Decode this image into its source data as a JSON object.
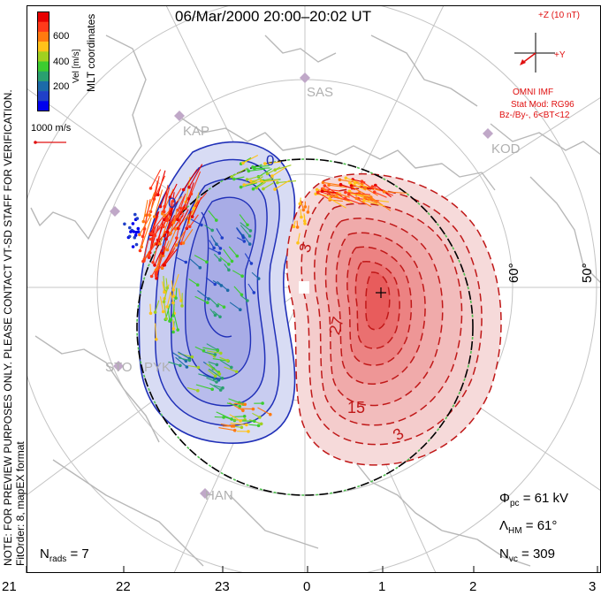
{
  "title": "06/Mar/2000 20:00–20:02 UT",
  "colorbar": {
    "label": "Vel [m/s]",
    "ticks": [
      "600",
      "400",
      "200"
    ],
    "colors": [
      "#e60000",
      "#ff3a1a",
      "#ff7a10",
      "#ffc21a",
      "#a0d020",
      "#3ccc30",
      "#2aa070",
      "#1c6aa8",
      "#2040c8",
      "#0000ee"
    ]
  },
  "coord_label": "MLT coordinates",
  "scale_vector": "1000 m/s",
  "disclaimer": "NOTE: FOR PREVIEW PURPOSES ONLY. PLEASE CONTACT VT-SD STAFF FOR VERIFICATION.",
  "fit_info": "FitOrder: 8,  mapEX format",
  "imf": {
    "bz_label": "+Z (10 nT)",
    "by_label": "+Y",
    "source": "OMNI IMF",
    "model": "Stat Mod: RG96",
    "condition": "Bz-/By-, 6<BT<12"
  },
  "radar_sites": [
    "SAS",
    "KAP",
    "KOD",
    "STO",
    "PYK",
    "HAN"
  ],
  "latitude_labels": [
    "60°",
    "50°"
  ],
  "contour_labels": {
    "negative": [
      "0",
      "0"
    ],
    "positive": [
      "3",
      "27",
      "15",
      "3"
    ]
  },
  "stats": {
    "phi_pc_symbol": "Φ",
    "phi_pc_sub": "pc",
    "phi_pc_value": "= 61  kV",
    "lambda_hm_symbol": "Λ",
    "lambda_hm_sub": "HM",
    "lambda_hm_value": "= 61°",
    "n_vc_symbol": "N",
    "n_vc_sub": "vc",
    "n_vc_value": "= 309",
    "n_rads_symbol": "N",
    "n_rads_sub": "rads",
    "n_rads_value": "= 7"
  },
  "mlt_ticks": [
    "21",
    "22",
    "23",
    "0",
    "1",
    "2",
    "3"
  ]
}
